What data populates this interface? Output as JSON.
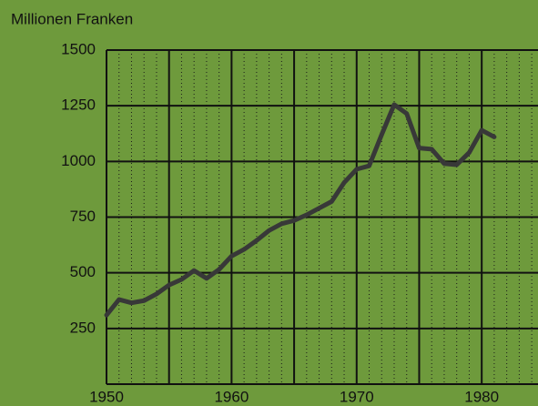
{
  "chart_data": {
    "type": "line",
    "title": "Millionen Franken",
    "x": [
      1950,
      1951,
      1952,
      1953,
      1954,
      1955,
      1956,
      1957,
      1958,
      1959,
      1960,
      1961,
      1962,
      1963,
      1964,
      1965,
      1966,
      1967,
      1968,
      1969,
      1970,
      1971,
      1972,
      1973,
      1974,
      1975,
      1976,
      1977,
      1978,
      1979,
      1980,
      1981
    ],
    "series": [
      {
        "color": "#383838",
        "values": [
          310,
          380,
          365,
          375,
          405,
          445,
          470,
          510,
          475,
          515,
          575,
          605,
          645,
          690,
          720,
          735,
          760,
          790,
          820,
          905,
          965,
          980,
          1120,
          1255,
          1215,
          1060,
          1055,
          990,
          985,
          1040,
          1140,
          1110
        ]
      }
    ],
    "xlim": [
      1950,
      1984.5
    ],
    "xticks": [
      1950,
      1960,
      1970,
      1980
    ],
    "ylim": [
      0,
      1500
    ],
    "yticks": [
      250,
      500,
      750,
      1000,
      1250,
      1500
    ],
    "grid": true
  }
}
